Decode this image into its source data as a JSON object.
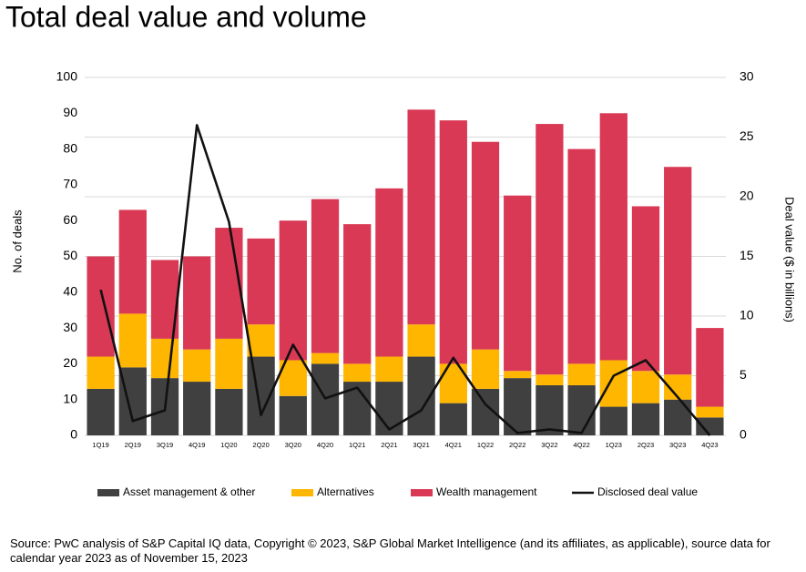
{
  "chart_data": {
    "type": "bar",
    "stacked": true,
    "title": "Total deal value and volume",
    "y_label": "No. of deals",
    "y2_label": "Deal value ($ in billions)",
    "source": "Source: PwC analysis of S&P Capital IQ data, Copyright © 2023, S&P Global Market Intelligence (and its affiliates, as applicable), source data for calendar year 2023 as of November 15, 2023",
    "categories": [
      "1Q19",
      "2Q19",
      "3Q19",
      "4Q19",
      "1Q20",
      "2Q20",
      "3Q20",
      "4Q20",
      "1Q21",
      "2Q21",
      "3Q21",
      "4Q21",
      "1Q22",
      "2Q22",
      "3Q22",
      "4Q22",
      "1Q23",
      "2Q23",
      "3Q23",
      "4Q23"
    ],
    "series": [
      {
        "name": "Asset management & other",
        "color": "#404040",
        "values": [
          13,
          19,
          16,
          15,
          13,
          22,
          11,
          20,
          15,
          15,
          22,
          9,
          13,
          16,
          14,
          14,
          8,
          9,
          10,
          5
        ]
      },
      {
        "name": "Alternatives",
        "color": "#ffb600",
        "values": [
          9,
          15,
          11,
          9,
          14,
          9,
          10,
          3,
          5,
          7,
          9,
          11,
          11,
          2,
          3,
          6,
          13,
          9,
          7,
          3
        ]
      },
      {
        "name": "Wealth management",
        "color": "#d93954",
        "values": [
          28,
          29,
          22,
          26,
          31,
          24,
          39,
          43,
          39,
          47,
          60,
          68,
          58,
          49,
          70,
          60,
          69,
          46,
          58,
          22
        ]
      },
      {
        "name": "Disclosed deal value",
        "color": "#111111",
        "type": "line",
        "axis": "y2",
        "values": [
          12.2,
          1.2,
          2.1,
          26.0,
          17.9,
          1.7,
          7.6,
          3.1,
          4.0,
          0.5,
          2.1,
          6.5,
          2.6,
          0.2,
          0.5,
          0.2,
          5.0,
          6.3,
          3.2,
          0
        ]
      }
    ],
    "ylim": [
      0,
      100
    ],
    "yticks": [
      0,
      10,
      20,
      30,
      40,
      50,
      60,
      70,
      80,
      90,
      100
    ],
    "y2lim": [
      0,
      30
    ],
    "y2ticks": [
      0,
      5,
      10,
      15,
      20,
      25,
      30
    ],
    "grid": true,
    "legend": "bottom"
  }
}
